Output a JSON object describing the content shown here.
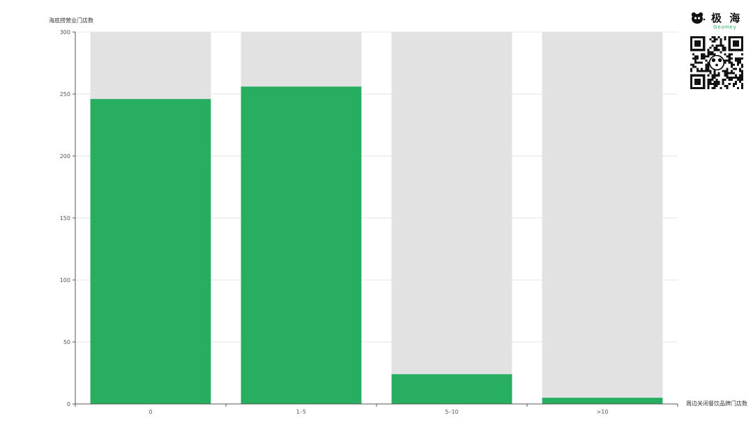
{
  "chart_data": {
    "type": "bar",
    "ylabel": "海底捞营业门店数",
    "xlabel": "周边关闭餐饮品牌门店数",
    "categories": [
      "0",
      "1–5",
      "5–10",
      ">10"
    ],
    "values": [
      246,
      256,
      24,
      5
    ],
    "ylim": [
      0,
      300
    ],
    "yticks": [
      0,
      50,
      100,
      150,
      200,
      250,
      300
    ],
    "grid": true,
    "background_bar": true,
    "colors": {
      "bar": "#27ae60",
      "background_bar": "#e2e2e2",
      "grid": "#e6e6e6",
      "axis": "#555555"
    }
  },
  "logo": {
    "name_cn": "极 海",
    "name_en": "GeoHey",
    "icon": "panda-logo-icon",
    "qr": "qr-code-icon"
  }
}
